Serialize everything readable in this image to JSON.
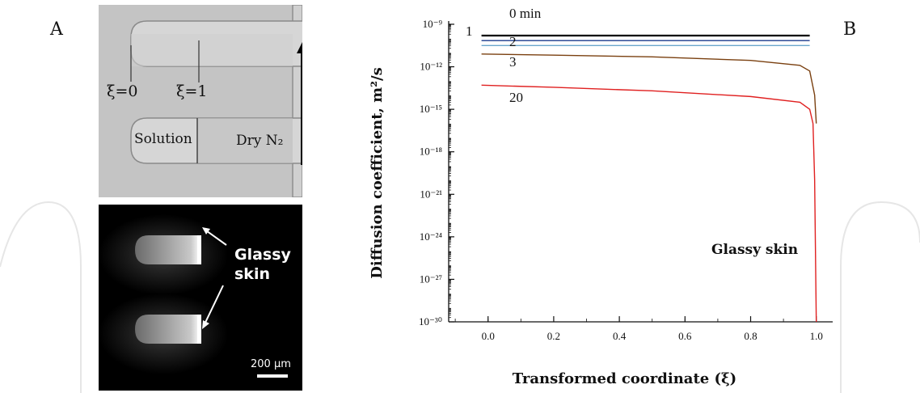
{
  "figure": {
    "panel_a_label": "A",
    "panel_b_label": "B"
  },
  "micrograph_top": {
    "xi0_label": "ξ=0",
    "xi1_label": "ξ=1",
    "solution_label": "Solution",
    "dry_n2_label": "Dry N₂"
  },
  "micrograph_bottom": {
    "glassy_label_line1": "Glassy",
    "glassy_label_line2": "skin",
    "scale_bar_label": "200 μm"
  },
  "chart_data": {
    "type": "line",
    "xlabel": "Transformed coordinate (ξ)",
    "ylabel": "Diffusion coefficient, m²/s",
    "xlim": [
      -0.12,
      1.05
    ],
    "ylim_log10": [
      -30,
      -9
    ],
    "y_scale": "log",
    "x_ticks": [
      0.0,
      0.2,
      0.4,
      0.6,
      0.8,
      1.0
    ],
    "x_tick_labels": [
      "0.0",
      "0.2",
      "0.4",
      "0.6",
      "0.8",
      "1.0"
    ],
    "y_ticks_log10": [
      -9,
      -12,
      -15,
      -18,
      -21,
      -24,
      -27,
      -30
    ],
    "y_tick_labels": [
      "10⁻⁹",
      "10⁻¹²",
      "10⁻¹⁵",
      "10⁻¹⁸",
      "10⁻²¹",
      "10⁻²⁴",
      "10⁻²⁷",
      "10⁻³⁰"
    ],
    "series": [
      {
        "name": "0 min",
        "color": "#000000",
        "x": [
          -0.02,
          0.98
        ],
        "log10_y": [
          -9.8,
          -9.8
        ]
      },
      {
        "name": "1",
        "color": "#1a3a8c",
        "x": [
          -0.02,
          0.98
        ],
        "log10_y": [
          -10.15,
          -10.15
        ]
      },
      {
        "name": "2",
        "color": "#6aa6cc",
        "x": [
          -0.02,
          0.98
        ],
        "log10_y": [
          -10.5,
          -10.5
        ]
      },
      {
        "name": "3",
        "color": "#7a4010",
        "x": [
          -0.02,
          0.2,
          0.5,
          0.8,
          0.95,
          0.98,
          0.995,
          1.0
        ],
        "log10_y": [
          -11.1,
          -11.18,
          -11.3,
          -11.55,
          -11.9,
          -12.3,
          -14.0,
          -16.0
        ]
      },
      {
        "name": "20",
        "color": "#e02020",
        "x": [
          -0.02,
          0.2,
          0.5,
          0.8,
          0.95,
          0.98,
          0.99,
          0.995,
          1.0
        ],
        "log10_y": [
          -13.3,
          -13.45,
          -13.7,
          -14.1,
          -14.5,
          -15.0,
          -16.0,
          -20.0,
          -30.0
        ]
      }
    ],
    "curve_labels": [
      "0 min",
      "1",
      "2",
      "3",
      "20"
    ],
    "annotation": "Glassy skin"
  }
}
